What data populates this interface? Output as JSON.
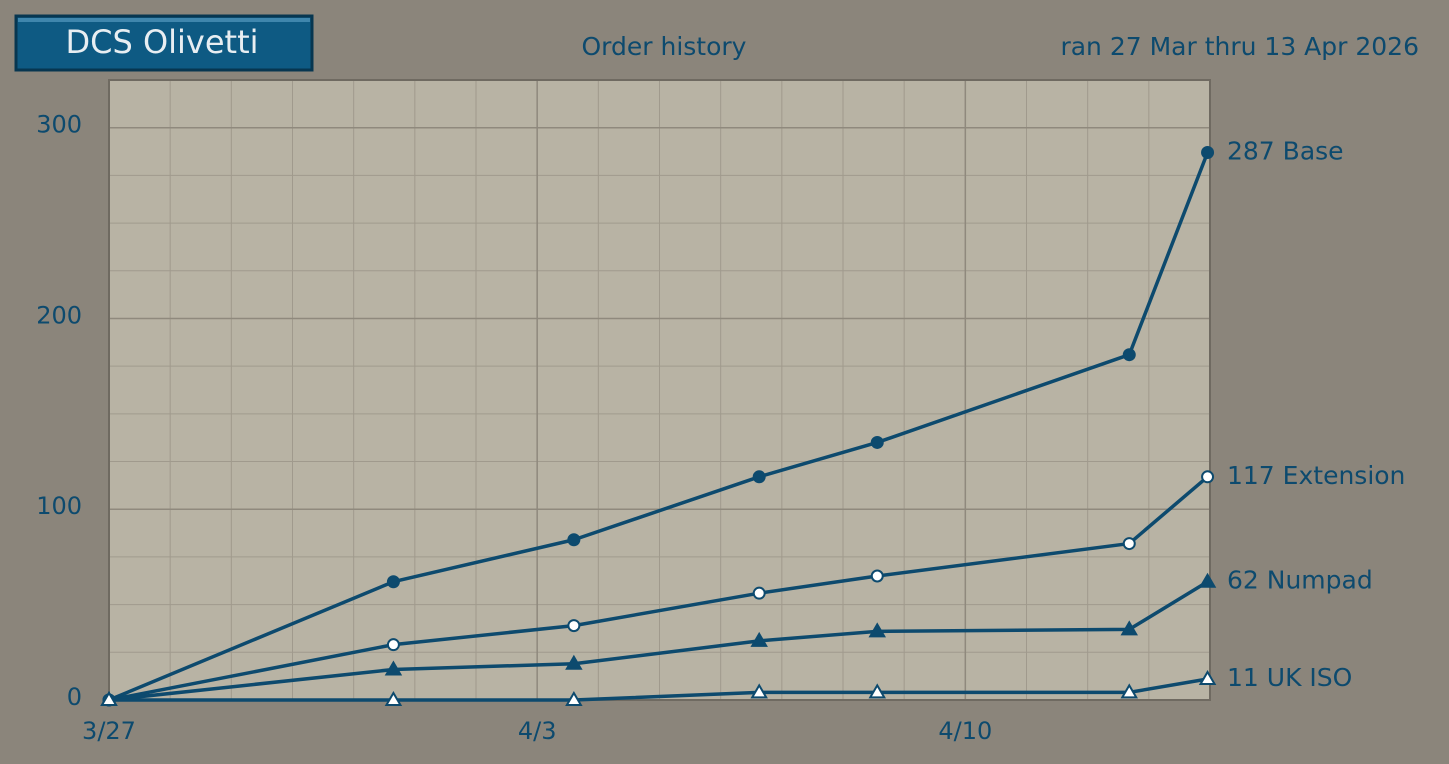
{
  "chart_data": {
    "type": "line",
    "badge": "DCS Olivetti",
    "title": "Order history",
    "subtitle": "ran 27 Mar thru 13 Apr 2026",
    "x": [
      0,
      4.65,
      7.6,
      10.63,
      12.56,
      16.68,
      17.96
    ],
    "xlim": [
      0,
      18
    ],
    "xticks": [
      {
        "value": 0,
        "label": "3/27"
      },
      {
        "value": 7,
        "label": "4/3"
      },
      {
        "value": 14,
        "label": "4/10"
      }
    ],
    "ylim": [
      0,
      325
    ],
    "yticks": [
      0,
      100,
      200,
      300
    ],
    "grid": true,
    "xminor_step": 1,
    "yminor_step": 25,
    "series": [
      {
        "name": "Base",
        "color": "#0d4a6e",
        "marker": "filled-circle",
        "values": [
          0,
          62,
          84,
          117,
          135,
          181,
          287
        ]
      },
      {
        "name": "Extension",
        "color": "#0d4a6e",
        "marker": "open-circle",
        "values": [
          0,
          29,
          39,
          56,
          65,
          82,
          117
        ]
      },
      {
        "name": "Numpad",
        "color": "#0d4a6e",
        "marker": "filled-triangle",
        "values": [
          0,
          16,
          19,
          31,
          36,
          37,
          62
        ]
      },
      {
        "name": "UK ISO",
        "color": "#0d4a6e",
        "marker": "open-triangle",
        "values": [
          0,
          0,
          0,
          4,
          4,
          4,
          11
        ]
      }
    ]
  }
}
